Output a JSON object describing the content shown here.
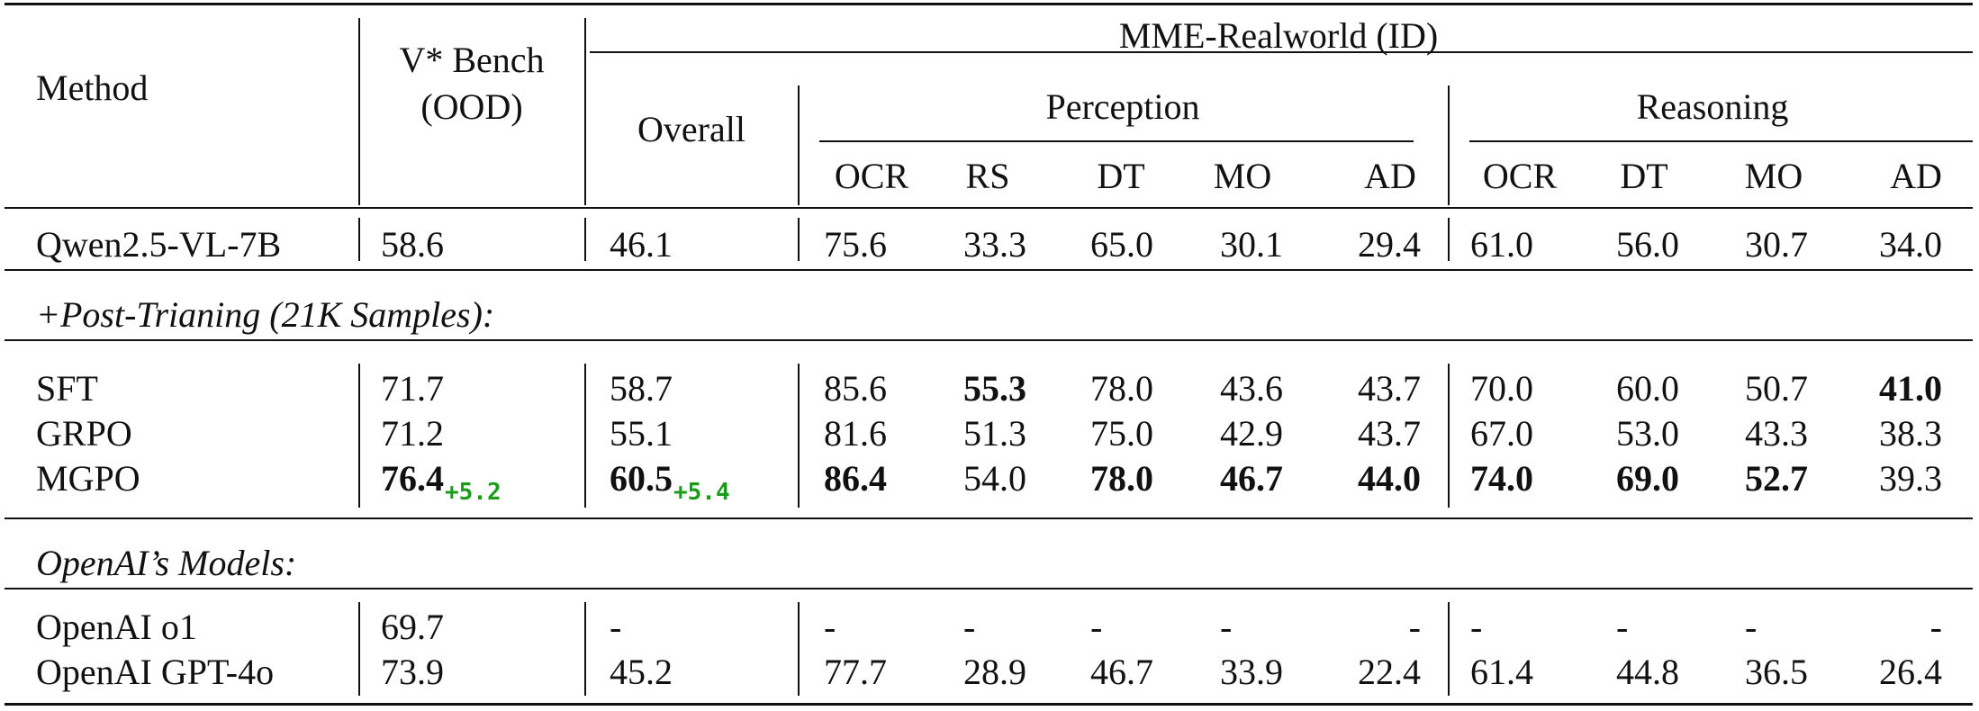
{
  "columns": {
    "method": "Method",
    "vbench": "V* Bench",
    "vbench_split": "(OOD)",
    "mme": "MME-Realworld (ID)",
    "overall": "Overall",
    "perception": "Perception",
    "reasoning": "Reasoning",
    "perception_sub": [
      "OCR",
      "RS",
      "DT",
      "MO",
      "AD"
    ],
    "reasoning_sub": [
      "OCR",
      "DT",
      "MO",
      "AD"
    ]
  },
  "sections": {
    "post_training": "+Post-Trianing (21K Samples):",
    "openai": "OpenAI’s Models:"
  },
  "rows": {
    "qwen": {
      "method": "Qwen2.5-VL-7B",
      "vbench": "58.6",
      "overall": "46.1",
      "perception": [
        "75.6",
        "33.3",
        "65.0",
        "30.1",
        "29.4"
      ],
      "reasoning": [
        "61.0",
        "56.0",
        "30.7",
        "34.0"
      ]
    },
    "sft": {
      "method": "SFT",
      "vbench": "71.7",
      "overall": "58.7",
      "perception": [
        "85.6",
        "55.3",
        "78.0",
        "43.6",
        "43.7"
      ],
      "reasoning": [
        "70.0",
        "60.0",
        "50.7",
        "41.0"
      ]
    },
    "grpo": {
      "method": "GRPO",
      "vbench": "71.2",
      "overall": "55.1",
      "perception": [
        "81.6",
        "51.3",
        "75.0",
        "42.9",
        "43.7"
      ],
      "reasoning": [
        "67.0",
        "53.0",
        "43.3",
        "38.3"
      ]
    },
    "mgpo": {
      "method": "MGPO",
      "vbench": "76.4",
      "vbench_gain": "+5.2",
      "overall": "60.5",
      "overall_gain": "+5.4",
      "perception": [
        "86.4",
        "54.0",
        "78.0",
        "46.7",
        "44.0"
      ],
      "reasoning": [
        "74.0",
        "69.0",
        "52.7",
        "39.3"
      ]
    },
    "o1": {
      "method": "OpenAI o1",
      "vbench": "69.7",
      "overall": "-",
      "perception": [
        "-",
        "-",
        "-",
        "-",
        "-"
      ],
      "reasoning": [
        "-",
        "-",
        "-",
        "-"
      ]
    },
    "gpt4o": {
      "method": "OpenAI GPT-4o",
      "vbench": "73.9",
      "overall": "45.2",
      "perception": [
        "77.7",
        "28.9",
        "46.7",
        "33.9",
        "22.4"
      ],
      "reasoning": [
        "61.4",
        "44.8",
        "36.5",
        "26.4"
      ]
    }
  },
  "colors": {
    "gain": "#1a9c1a",
    "rule": "#111111"
  }
}
